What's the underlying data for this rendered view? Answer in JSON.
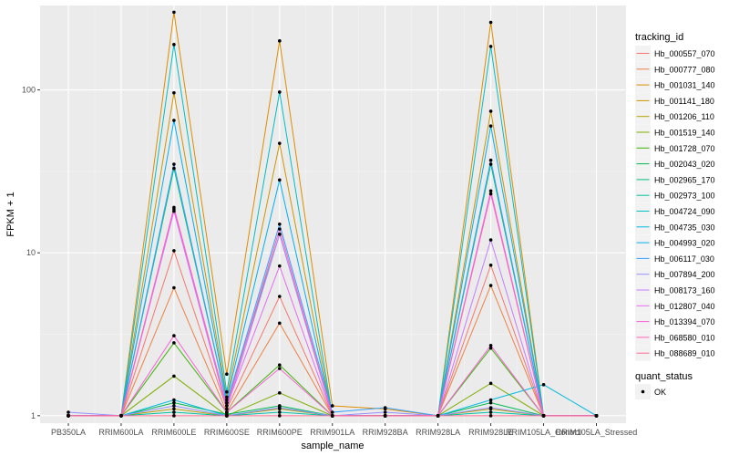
{
  "chart_data": {
    "type": "line",
    "title": "",
    "xlabel": "sample_name",
    "ylabel": "FPKM + 1",
    "y_scale": "log10",
    "ylim": [
      0.9,
      330
    ],
    "y_ticks": [
      1,
      10,
      100
    ],
    "y_tick_labels": [
      "1",
      "10",
      "100"
    ],
    "grid": true,
    "legend_position": "right",
    "categories": [
      "PB350LA",
      "RRIM600LA",
      "RRIM600LE",
      "RRIM600SE",
      "RRIM600PE",
      "RRIM901LA",
      "RRIM928BA",
      "RRIM928LA",
      "RRIM928LE",
      "RRIM105LA_Control",
      "RRIM105LA_Stressed"
    ],
    "series_legend_title": "tracking_id",
    "series": [
      {
        "name": "Hb_000557_070",
        "color": "#F8766D",
        "values": [
          1.0,
          1.0,
          10.3,
          1.1,
          5.4,
          1.0,
          1.0,
          1.0,
          8.4,
          1.0,
          1.0
        ]
      },
      {
        "name": "Hb_000777_080",
        "color": "#EE8044",
        "values": [
          1.0,
          1.0,
          6.1,
          1.05,
          3.7,
          1.0,
          1.0,
          1.0,
          6.3,
          1.0,
          1.0
        ]
      },
      {
        "name": "Hb_001031_140",
        "color": "#DE8C00",
        "values": [
          1.0,
          1.0,
          300.0,
          1.8,
          200.0,
          1.15,
          1.1,
          1.0,
          260.0,
          1.0,
          1.0
        ]
      },
      {
        "name": "Hb_001141_180",
        "color": "#CD9600",
        "values": [
          1.0,
          1.0,
          96.0,
          1.3,
          47.0,
          1.0,
          1.0,
          1.0,
          74.0,
          1.0,
          1.0
        ]
      },
      {
        "name": "Hb_001206_110",
        "color": "#B79F00",
        "values": [
          1.0,
          1.0,
          1.1,
          1.0,
          1.1,
          1.0,
          1.0,
          1.0,
          1.1,
          1.0,
          1.0
        ]
      },
      {
        "name": "Hb_001519_140",
        "color": "#7CAE00",
        "values": [
          1.0,
          1.0,
          1.75,
          1.0,
          1.38,
          1.0,
          1.0,
          1.0,
          1.58,
          1.0,
          1.0
        ]
      },
      {
        "name": "Hb_001728_070",
        "color": "#39B600",
        "values": [
          1.0,
          1.0,
          2.8,
          1.05,
          2.05,
          1.0,
          1.0,
          1.0,
          2.6,
          1.0,
          1.0
        ]
      },
      {
        "name": "Hb_002043_020",
        "color": "#00BB4E",
        "values": [
          1.0,
          1.0,
          1.2,
          1.02,
          1.15,
          1.0,
          1.0,
          1.0,
          1.2,
          1.0,
          1.0
        ]
      },
      {
        "name": "Hb_002965_170",
        "color": "#00BF7D",
        "values": [
          1.0,
          1.0,
          33.0,
          1.2,
          13.0,
          1.0,
          1.0,
          1.0,
          35.0,
          1.0,
          1.0
        ]
      },
      {
        "name": "Hb_002973_100",
        "color": "#00C1A3",
        "values": [
          1.0,
          1.0,
          1.05,
          1.0,
          1.05,
          1.0,
          1.0,
          1.0,
          1.05,
          1.0,
          1.0
        ]
      },
      {
        "name": "Hb_004724_090",
        "color": "#00BFC4",
        "values": [
          1.0,
          1.0,
          190.0,
          1.4,
          97.0,
          1.0,
          1.0,
          1.0,
          185.0,
          1.0,
          1.0
        ]
      },
      {
        "name": "Hb_004735_030",
        "color": "#00BAE0",
        "values": [
          1.0,
          1.0,
          1.25,
          1.0,
          1.12,
          1.0,
          1.0,
          1.0,
          1.25,
          1.55,
          1.0
        ]
      },
      {
        "name": "Hb_004993_020",
        "color": "#00B0F6",
        "values": [
          1.0,
          1.0,
          65.0,
          1.25,
          28.0,
          1.0,
          1.0,
          1.0,
          60.0,
          1.0,
          1.0
        ]
      },
      {
        "name": "Hb_006117_030",
        "color": "#35A2FF",
        "values": [
          1.0,
          1.0,
          35.0,
          1.2,
          15.0,
          1.05,
          1.12,
          1.0,
          37.0,
          1.0,
          1.0
        ]
      },
      {
        "name": "Hb_007894_200",
        "color": "#9590FF",
        "values": [
          1.05,
          1.0,
          1.15,
          1.0,
          1.12,
          1.0,
          1.05,
          1.0,
          1.12,
          1.0,
          1.0
        ]
      },
      {
        "name": "Hb_008173_160",
        "color": "#C77CFF",
        "values": [
          1.0,
          1.0,
          18.0,
          1.1,
          13.0,
          1.0,
          1.0,
          1.0,
          12.0,
          1.0,
          1.0
        ]
      },
      {
        "name": "Hb_012807_040",
        "color": "#E76BF3",
        "values": [
          1.0,
          1.0,
          18.5,
          1.15,
          8.3,
          1.0,
          1.0,
          1.0,
          24.0,
          1.0,
          1.0
        ]
      },
      {
        "name": "Hb_013394_070",
        "color": "#FA62DB",
        "values": [
          1.0,
          1.0,
          3.1,
          1.05,
          1.95,
          1.0,
          1.0,
          1.0,
          2.7,
          1.0,
          1.0
        ]
      },
      {
        "name": "Hb_068580_010",
        "color": "#FF62BC",
        "values": [
          1.0,
          1.0,
          19.0,
          1.15,
          14.0,
          1.0,
          1.0,
          1.0,
          23.0,
          1.0,
          1.0
        ]
      },
      {
        "name": "Hb_088689_010",
        "color": "#FF6C91",
        "values": [
          1.0,
          1.0,
          1.0,
          1.0,
          1.0,
          1.0,
          1.0,
          1.0,
          1.0,
          1.0,
          1.0
        ]
      }
    ],
    "point_legend_title": "quant_status",
    "point_legend_items": [
      "OK"
    ]
  }
}
